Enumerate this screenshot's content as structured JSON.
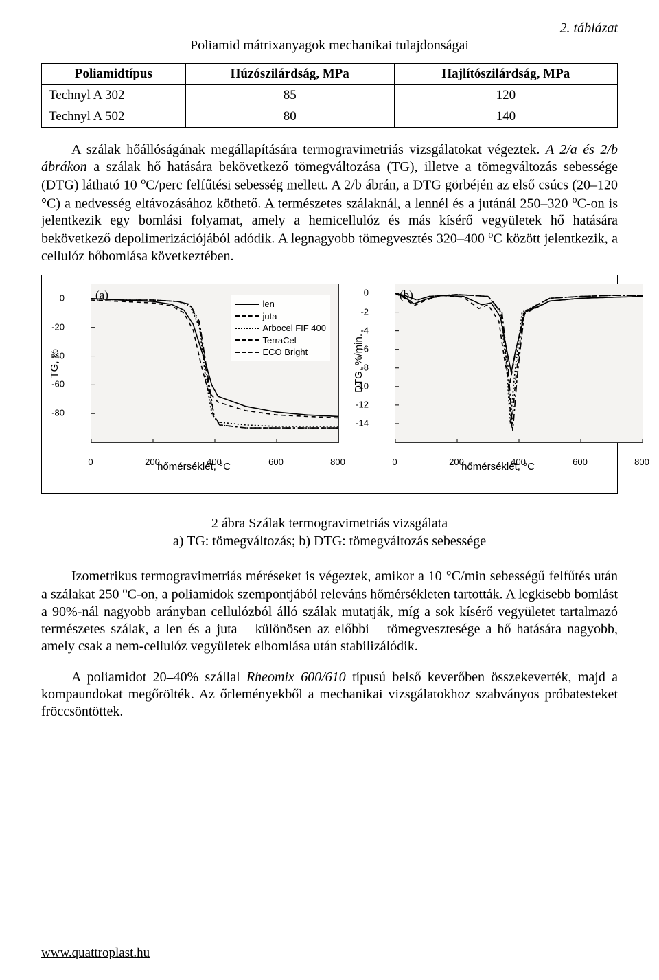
{
  "table": {
    "tag": "2. táblázat",
    "caption": "Poliamid mátrixanyagok mechanikai tulajdonságai",
    "headers": [
      "Poliamidtípus",
      "Húzószilárdság, MPa",
      "Hajlítószilárdság, MPa"
    ],
    "rows": [
      [
        "Technyl A 302",
        "85",
        "120"
      ],
      [
        "Technyl A 502",
        "80",
        "140"
      ]
    ]
  },
  "paragraphs": {
    "p1_a": "A szálak hőállóságának megállapítására termogravimetriás vizsgálatokat végeztek. ",
    "p1_b": "A 2/a és 2/b ábrákon",
    "p1_c": " a szálak hő hatására bekövetkező tömegváltozása (TG), illetve a tömegváltozás sebessége (DTG) látható 10 ",
    "p1_d": "C/perc felfűtési sebesség mellett. A 2/b ábrán, a DTG görbéjén az első csúcs (20–120 °C) a nedvesség eltávozásához köthető. A természetes szálaknál, a lennél és a jutánál 250–320 ",
    "p1_e": "C-on is jelentkezik egy bomlási folyamat, amely a hemicellulóz és más kísérő vegyületek hő hatására bekövetkező depolimerizációjából adódik. A legnagyobb tömegvesztés 320–400 ",
    "p1_f": "C között jelentkezik, a cellulóz hőbomlása következtében.",
    "p2_a": "Izometrikus termogravimetriás méréseket is végeztek, amikor a 10 °C/min sebességű felfűtés után a szálakat 250 ",
    "p2_b": "C-on, a poliamidok szempontjából releváns hőmérsékleten tartották. A legkisebb bomlást a 90%-nál nagyobb arányban cellulózból álló szálak mutatják, míg a sok kísérő vegyületet tartalmazó természetes szálak, a len és a juta – különösen az előbbi – tömegvesztesége a hő hatására nagyobb, amely csak a nem-cellulóz vegyületek elbomlása után stabilizálódik.",
    "p3_a": "A poliamidot 20–40% szállal ",
    "p3_b": "Rheomix 600/610",
    "p3_c": " típusú belső keverőben összekeverték, majd a kompaundokat megőrölték. Az őrleményekből a mechanikai vizsgálatokhoz szabványos próbatesteket fröccsöntöttek."
  },
  "figure": {
    "panelA": {
      "label": "(a)",
      "ylabel": "TG, %"
    },
    "panelB": {
      "label": "(b)",
      "ylabel": "DTG, %/min."
    },
    "xlabel": "hőmérséklet, °C",
    "legend": [
      {
        "label": "len",
        "css_dash": "solid"
      },
      {
        "label": "juta",
        "css_dash": "dashed"
      },
      {
        "label": "Arbocel FIF 400",
        "css_dash": "dotted"
      },
      {
        "label": "TerraCel",
        "css_dash": "dashdot"
      },
      {
        "label": "ECO Bright",
        "css_dash": "longdash"
      }
    ],
    "styling": {
      "line_color": "#000000",
      "line_width": 1.6,
      "background": "#f4f3f1",
      "font_family_axes": "Arial",
      "panel_border_color": "#333333",
      "figure_border_color": "#000000",
      "axis_fontsize": 13,
      "label_fontsize": 15
    },
    "axisA": {
      "xlim": [
        0,
        800
      ],
      "xticks": [
        0,
        200,
        400,
        600,
        800
      ],
      "ylim": [
        -100,
        10
      ],
      "yticks": [
        0,
        -20,
        -40,
        -60,
        -80
      ]
    },
    "axisB": {
      "xlim": [
        0,
        800
      ],
      "xticks": [
        0,
        200,
        400,
        600,
        800
      ],
      "ylim": [
        -16,
        1
      ],
      "yticks": [
        0,
        -2,
        -4,
        -6,
        -8,
        -10,
        -12,
        -14
      ]
    },
    "seriesA": {
      "len": [
        [
          0,
          0
        ],
        [
          100,
          -1
        ],
        [
          200,
          -2
        ],
        [
          260,
          -4
        ],
        [
          300,
          -8
        ],
        [
          330,
          -18
        ],
        [
          370,
          -45
        ],
        [
          390,
          -60
        ],
        [
          410,
          -68
        ],
        [
          500,
          -75
        ],
        [
          600,
          -79
        ],
        [
          700,
          -81
        ],
        [
          800,
          -82
        ]
      ],
      "juta": [
        [
          0,
          -1
        ],
        [
          100,
          -2
        ],
        [
          200,
          -3
        ],
        [
          260,
          -5
        ],
        [
          300,
          -10
        ],
        [
          330,
          -22
        ],
        [
          360,
          -50
        ],
        [
          380,
          -65
        ],
        [
          410,
          -72
        ],
        [
          500,
          -78
        ],
        [
          600,
          -81
        ],
        [
          700,
          -82
        ],
        [
          800,
          -83
        ]
      ],
      "arbocel": [
        [
          0,
          0
        ],
        [
          100,
          -1
        ],
        [
          200,
          -1
        ],
        [
          280,
          -2
        ],
        [
          320,
          -5
        ],
        [
          350,
          -20
        ],
        [
          370,
          -55
        ],
        [
          390,
          -80
        ],
        [
          410,
          -86
        ],
        [
          500,
          -88
        ],
        [
          600,
          -89
        ],
        [
          700,
          -89
        ],
        [
          800,
          -89
        ]
      ],
      "terracel": [
        [
          0,
          0
        ],
        [
          100,
          -1
        ],
        [
          200,
          -1
        ],
        [
          280,
          -2
        ],
        [
          320,
          -4
        ],
        [
          350,
          -18
        ],
        [
          375,
          -55
        ],
        [
          395,
          -82
        ],
        [
          415,
          -88
        ],
        [
          500,
          -90
        ],
        [
          600,
          -90
        ],
        [
          700,
          -90
        ],
        [
          800,
          -90
        ]
      ],
      "eco": [
        [
          0,
          0
        ],
        [
          100,
          -1
        ],
        [
          200,
          -1
        ],
        [
          280,
          -2
        ],
        [
          320,
          -4
        ],
        [
          350,
          -16
        ],
        [
          378,
          -55
        ],
        [
          398,
          -82
        ],
        [
          418,
          -88
        ],
        [
          500,
          -90
        ],
        [
          600,
          -90
        ],
        [
          700,
          -90
        ],
        [
          800,
          -90
        ]
      ]
    },
    "seriesB": {
      "len": [
        [
          0,
          0
        ],
        [
          25,
          -0.3
        ],
        [
          60,
          -1.1
        ],
        [
          100,
          -0.6
        ],
        [
          150,
          -0.2
        ],
        [
          220,
          -0.3
        ],
        [
          280,
          -1.2
        ],
        [
          310,
          -1.0
        ],
        [
          340,
          -2.5
        ],
        [
          360,
          -6.0
        ],
        [
          375,
          -8.5
        ],
        [
          390,
          -6.0
        ],
        [
          420,
          -2.0
        ],
        [
          500,
          -0.8
        ],
        [
          600,
          -0.5
        ],
        [
          700,
          -0.4
        ],
        [
          800,
          -0.3
        ]
      ],
      "juta": [
        [
          0,
          0
        ],
        [
          25,
          -0.4
        ],
        [
          60,
          -1.3
        ],
        [
          100,
          -0.7
        ],
        [
          150,
          -0.2
        ],
        [
          220,
          -0.4
        ],
        [
          270,
          -1.6
        ],
        [
          300,
          -1.2
        ],
        [
          335,
          -3.0
        ],
        [
          355,
          -7.5
        ],
        [
          370,
          -9.8
        ],
        [
          385,
          -7.0
        ],
        [
          415,
          -2.2
        ],
        [
          500,
          -0.8
        ],
        [
          600,
          -0.5
        ],
        [
          700,
          -0.4
        ],
        [
          800,
          -0.3
        ]
      ],
      "arbocel": [
        [
          0,
          0
        ],
        [
          30,
          -0.2
        ],
        [
          70,
          -0.7
        ],
        [
          110,
          -0.3
        ],
        [
          200,
          -0.1
        ],
        [
          300,
          -0.3
        ],
        [
          340,
          -2.0
        ],
        [
          360,
          -8.0
        ],
        [
          372,
          -14.0
        ],
        [
          385,
          -9.0
        ],
        [
          410,
          -2.0
        ],
        [
          500,
          -0.5
        ],
        [
          600,
          -0.3
        ],
        [
          700,
          -0.2
        ],
        [
          800,
          -0.2
        ]
      ],
      "terracel": [
        [
          0,
          0
        ],
        [
          30,
          -0.2
        ],
        [
          70,
          -0.7
        ],
        [
          110,
          -0.3
        ],
        [
          200,
          -0.1
        ],
        [
          300,
          -0.3
        ],
        [
          342,
          -2.0
        ],
        [
          362,
          -8.0
        ],
        [
          376,
          -14.5
        ],
        [
          390,
          -9.0
        ],
        [
          415,
          -2.0
        ],
        [
          500,
          -0.5
        ],
        [
          600,
          -0.3
        ],
        [
          700,
          -0.2
        ],
        [
          800,
          -0.2
        ]
      ],
      "eco": [
        [
          0,
          0
        ],
        [
          30,
          -0.2
        ],
        [
          70,
          -0.7
        ],
        [
          110,
          -0.3
        ],
        [
          200,
          -0.1
        ],
        [
          300,
          -0.3
        ],
        [
          345,
          -2.0
        ],
        [
          365,
          -8.0
        ],
        [
          380,
          -14.8
        ],
        [
          394,
          -9.0
        ],
        [
          418,
          -2.0
        ],
        [
          500,
          -0.5
        ],
        [
          600,
          -0.3
        ],
        [
          700,
          -0.2
        ],
        [
          800,
          -0.2
        ]
      ]
    },
    "caption_line1": "2 ábra Szálak termogravimetriás vizsgálata",
    "caption_line2": "a) TG: tömegváltozás; b) DTG: tömegváltozás sebessége"
  },
  "footer": {
    "link": "www.quattroplast.hu"
  },
  "dash_map": {
    "solid": "",
    "dashed": "6,5",
    "dotted": "2,3",
    "dashdot": "7,4,2,4",
    "longdash": "10,4,3,4"
  },
  "css_dash_map": {
    "solid": "solid",
    "dashed": "dashed",
    "dotted": "dotted",
    "dashdot": "dashed",
    "longdash": "dashed"
  }
}
